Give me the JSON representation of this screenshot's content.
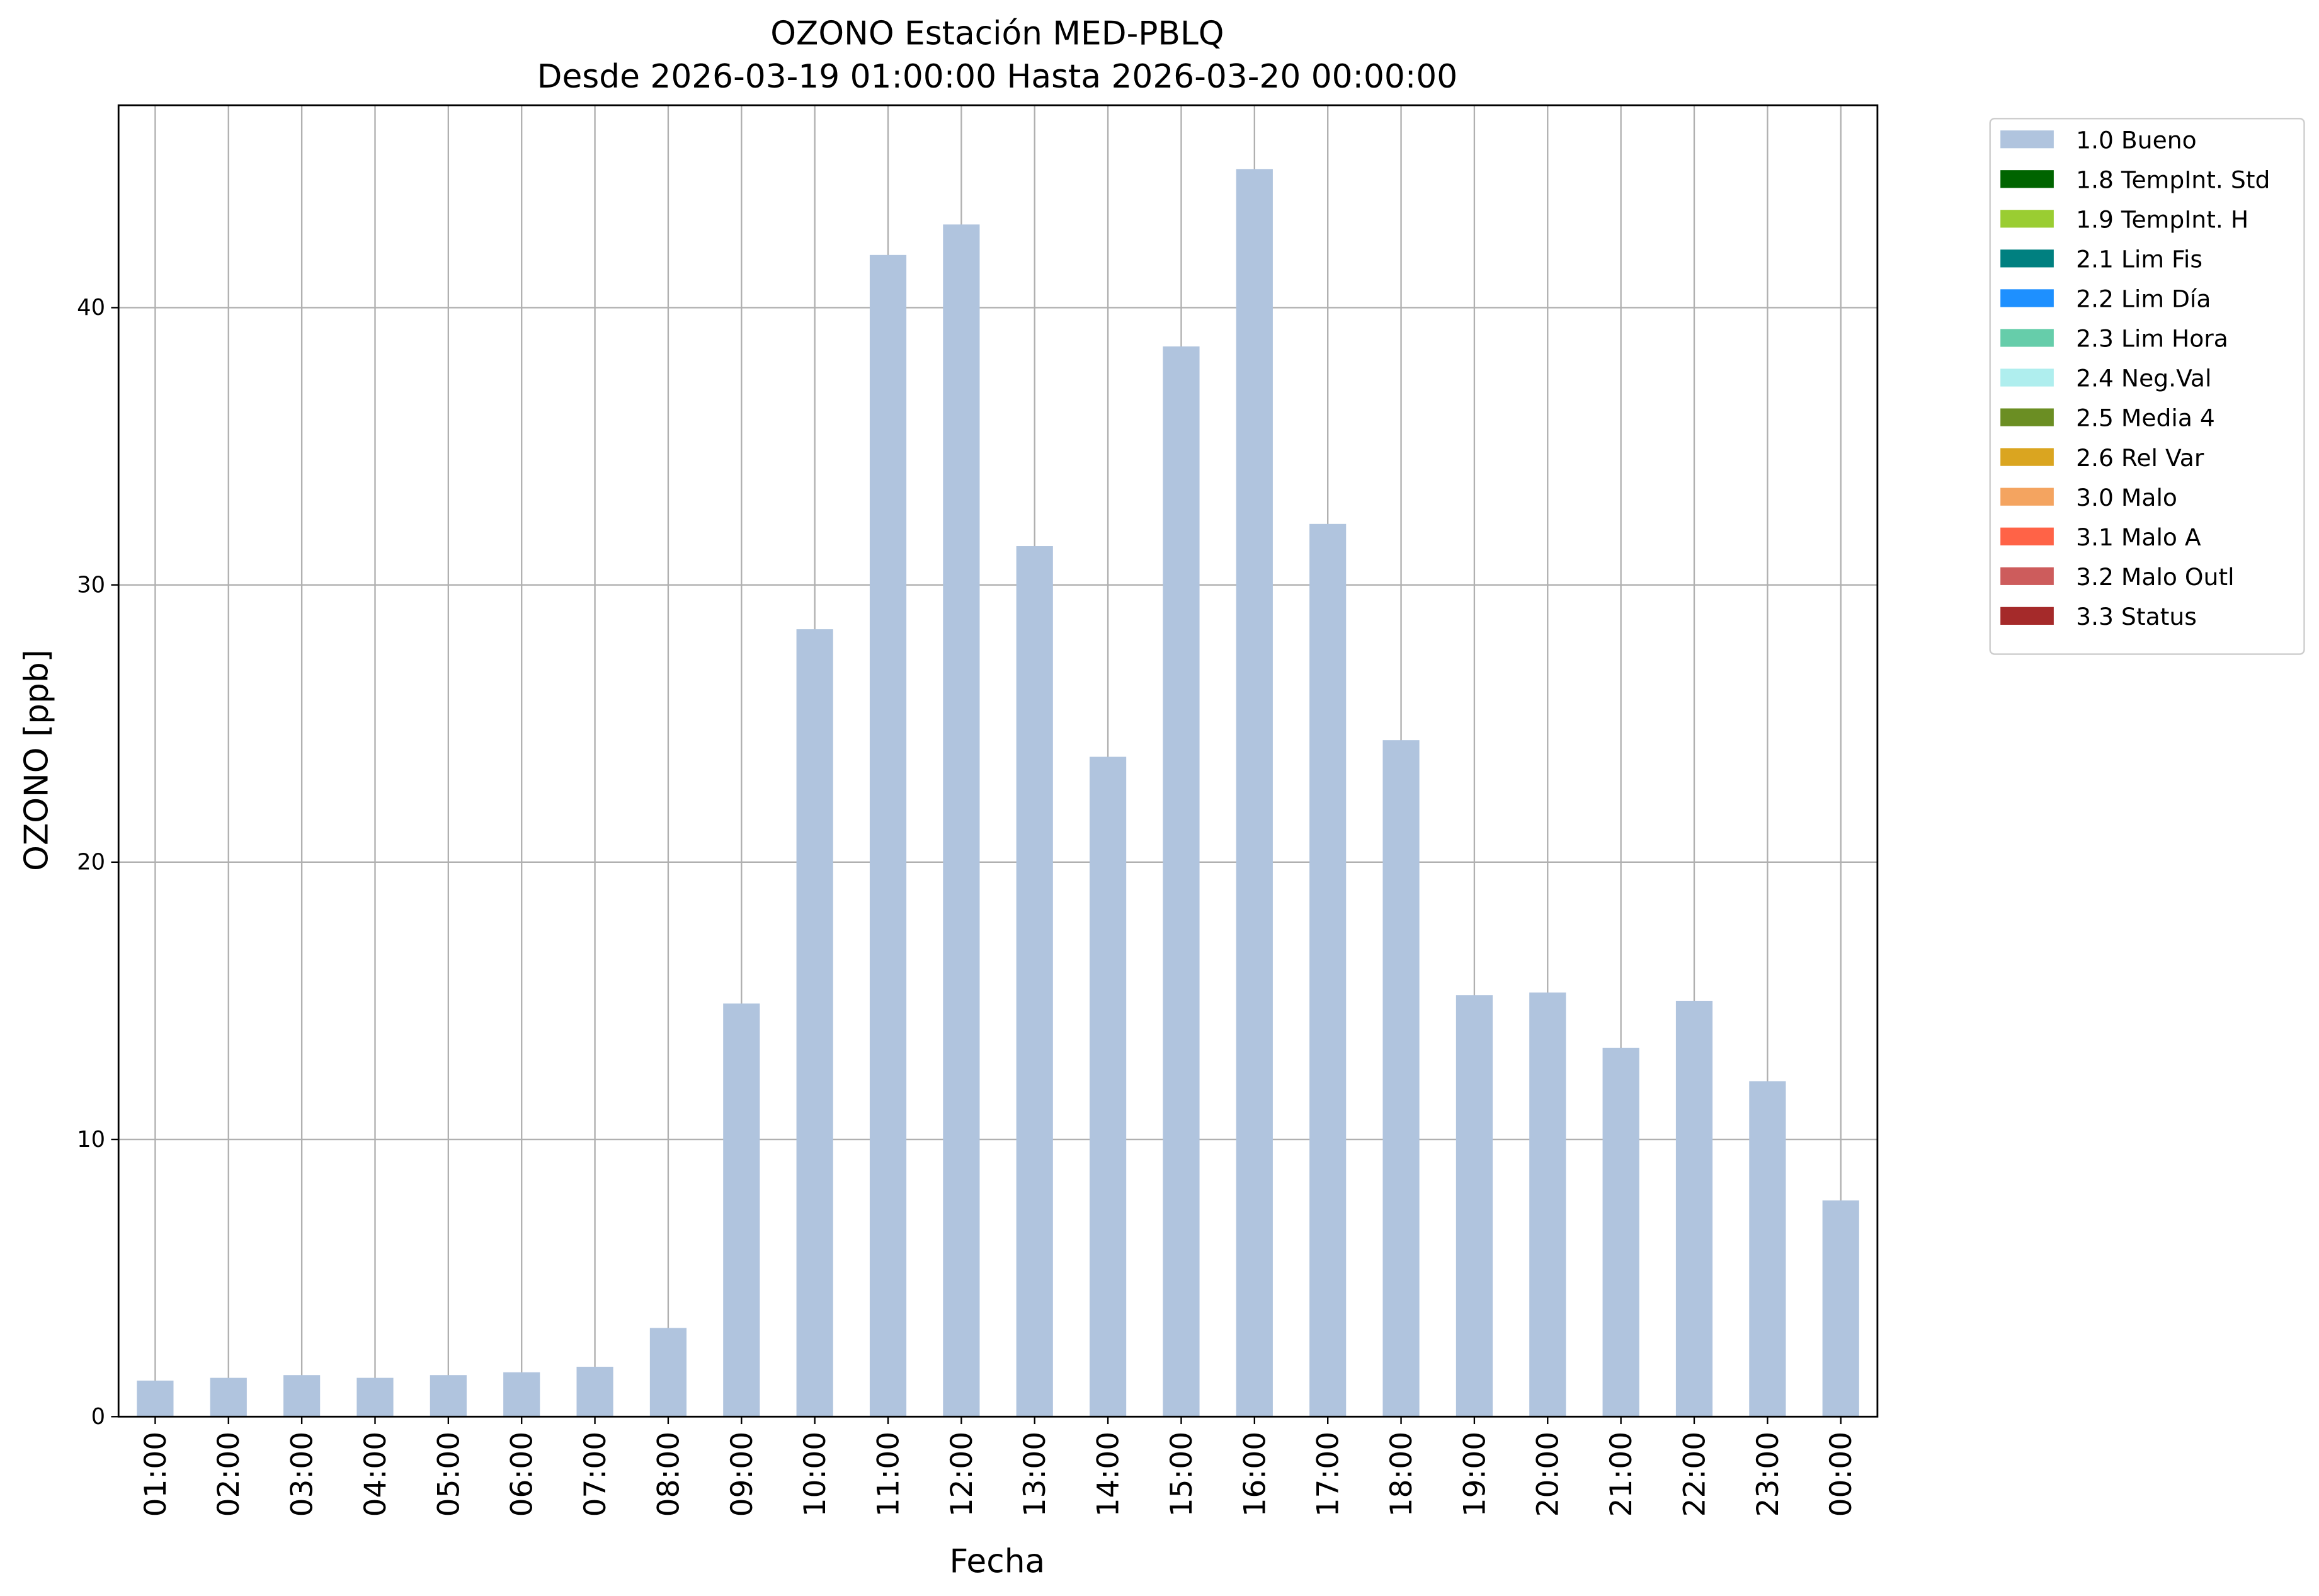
{
  "chart_data": {
    "type": "bar",
    "title": "OZONO Estación MED-PBLQ",
    "subtitle": "Desde 2026-03-19 01:00:00 Hasta 2026-03-20 00:00:00",
    "x_label": "Fecha",
    "y_label": "OZONO [ppb]",
    "categories": [
      "01:00",
      "02:00",
      "03:00",
      "04:00",
      "05:00",
      "06:00",
      "07:00",
      "08:00",
      "09:00",
      "10:00",
      "11:00",
      "12:00",
      "13:00",
      "14:00",
      "15:00",
      "16:00",
      "17:00",
      "18:00",
      "19:00",
      "20:00",
      "21:00",
      "22:00",
      "23:00",
      "00:00"
    ],
    "series": [
      {
        "name": "1.0 Bueno",
        "color": "#b0c4de",
        "values": [
          1.3,
          1.4,
          1.5,
          1.4,
          1.5,
          1.6,
          1.8,
          3.2,
          14.9,
          28.4,
          41.9,
          43.0,
          31.4,
          23.8,
          38.6,
          45.0,
          32.2,
          24.4,
          15.2,
          15.3,
          13.3,
          15.0,
          12.1,
          7.8
        ]
      }
    ],
    "legend_entries": [
      {
        "name": "1.8 TempInt. Std",
        "color": "#006400"
      },
      {
        "name": "1.9 TempInt. H",
        "color": "#9acd32"
      },
      {
        "name": "2.1 Lim Fis",
        "color": "#008080"
      },
      {
        "name": "2.2 Lim Día",
        "color": "#1e90ff"
      },
      {
        "name": "2.3 Lim Hora",
        "color": "#66cdaa"
      },
      {
        "name": "2.4 Neg.Val",
        "color": "#afeeee"
      },
      {
        "name": "2.5 Media 4",
        "color": "#6b8e23"
      },
      {
        "name": "2.6 Rel Var",
        "color": "#daa520"
      },
      {
        "name": "3.0 Malo",
        "color": "#f4a460"
      },
      {
        "name": "3.1 Malo A",
        "color": "#ff6347"
      },
      {
        "name": "3.2 Malo Outl",
        "color": "#cd5c5c"
      },
      {
        "name": "3.3 Status",
        "color": "#a52a2a"
      }
    ],
    "ylim": [
      0,
      47.3
    ],
    "yticks": [
      0,
      10,
      20,
      30,
      40
    ],
    "grid": true,
    "legend_position": "outside-upper-right"
  }
}
